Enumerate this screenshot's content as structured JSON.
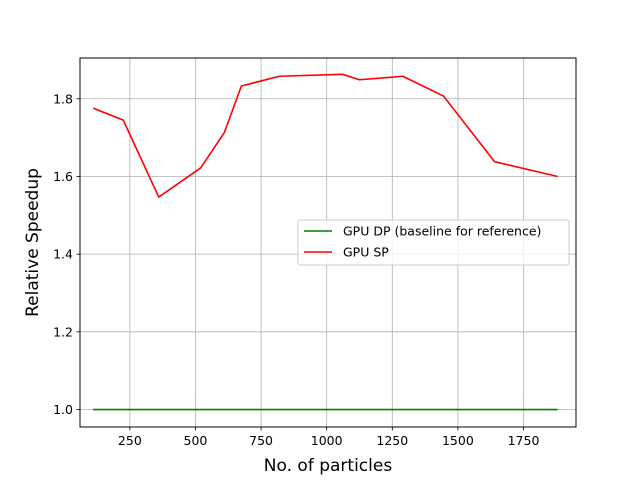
{
  "chart_data": {
    "type": "line",
    "title": "",
    "xlabel": "No. of particles",
    "ylabel": "Relative Speedup",
    "xlim": [
      60,
      1950
    ],
    "ylim": [
      0.955,
      1.905
    ],
    "xticks": [
      250,
      500,
      750,
      1000,
      1250,
      1500,
      1750
    ],
    "yticks": [
      1.0,
      1.2,
      1.4,
      1.6,
      1.8
    ],
    "xtick_labels": [
      "250",
      "500",
      "750",
      "1000",
      "1250",
      "1500",
      "1750"
    ],
    "ytick_labels": [
      "1.0",
      "1.2",
      "1.4",
      "1.6",
      "1.8"
    ],
    "grid": true,
    "legend": "center-right",
    "series": [
      {
        "name": "GPU DP (baseline for reference)",
        "color": "#008000",
        "x": [
          110,
          1880
        ],
        "y": [
          1.0,
          1.0
        ]
      },
      {
        "name": "GPU SP",
        "color": "#ff0000",
        "x": [
          110,
          225,
          360,
          520,
          610,
          675,
          820,
          1060,
          1125,
          1290,
          1445,
          1640,
          1880
        ],
        "y": [
          1.776,
          1.745,
          1.547,
          1.622,
          1.713,
          1.833,
          1.858,
          1.863,
          1.849,
          1.858,
          1.807,
          1.638,
          1.6
        ]
      }
    ]
  }
}
